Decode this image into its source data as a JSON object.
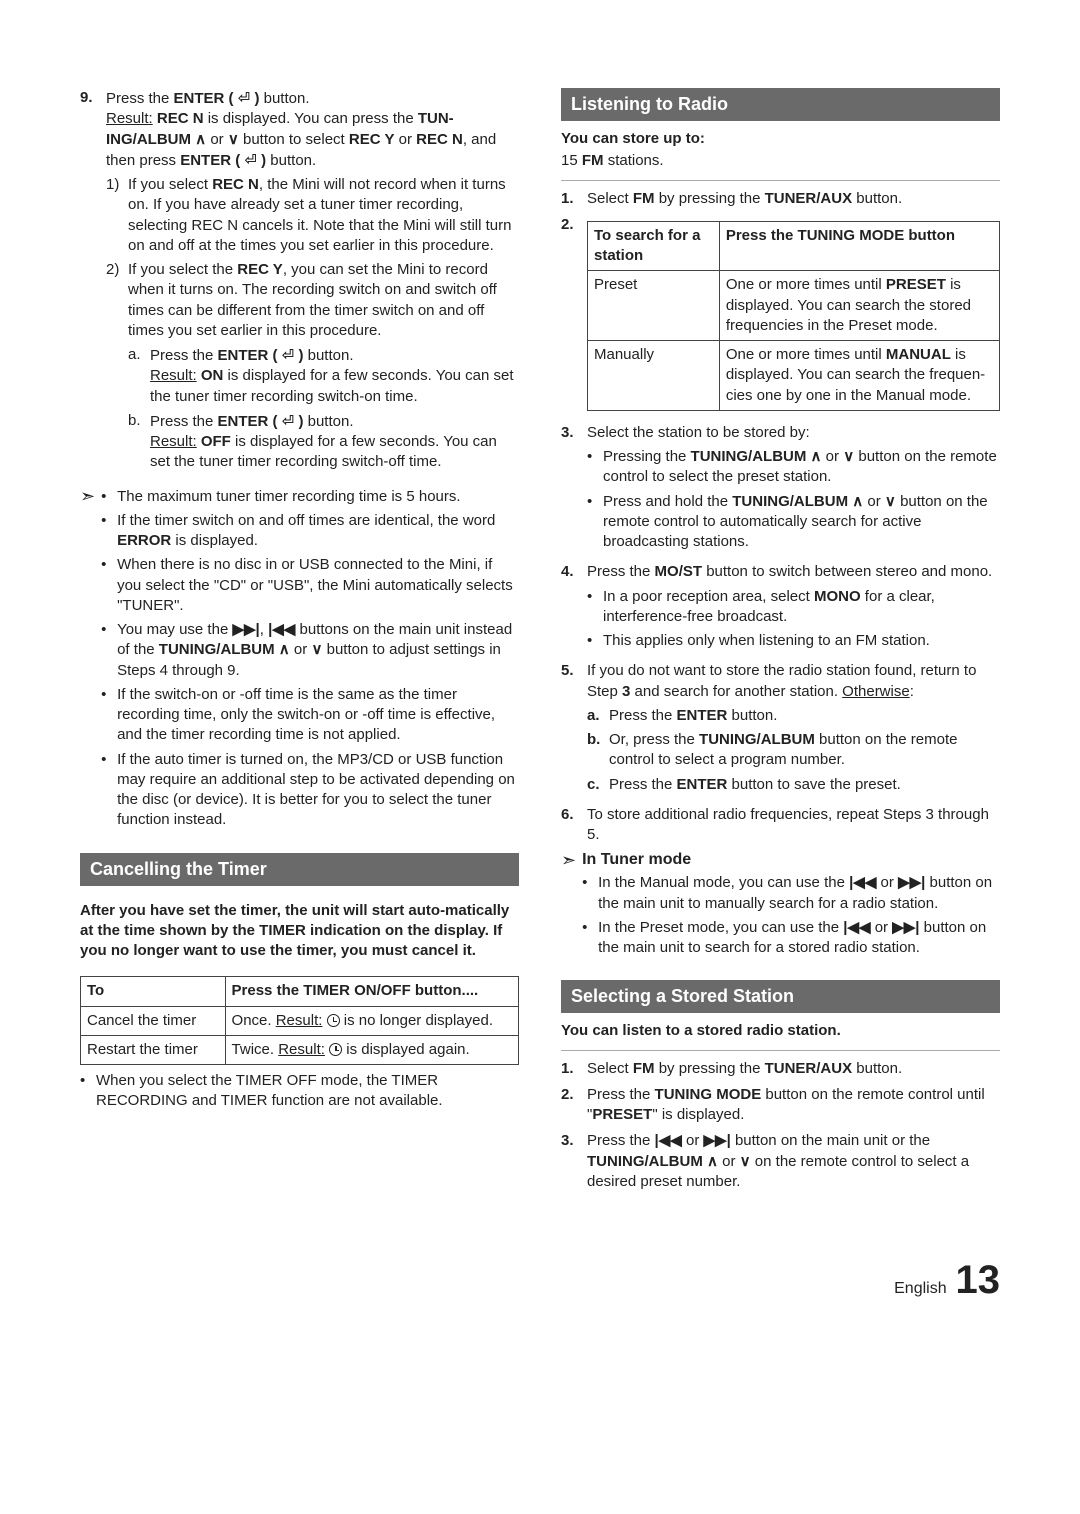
{
  "colors": {
    "header_bg": "#6a6a6a",
    "header_fg": "#ffffff",
    "text": "#222222",
    "rule": "#aaaaaa",
    "border": "#444444"
  },
  "typography": {
    "body_pt": 15,
    "header_pt": 18,
    "footer_pg_pt": 40,
    "line_height": 1.35
  },
  "left": {
    "step9": {
      "marker": "9.",
      "line1_a": "Press the ",
      "line1_b": "ENTER ( ",
      "enter_icon": "⏎",
      "line1_c": " )",
      "line1_d": " button.",
      "result_label": "Result:",
      "result1_a": " REC N",
      "result1_b": " is displayed. You can press the ",
      "tun_album": "TUN-ING/ALBUM ",
      "up": "∧",
      "or": " or ",
      "dn": "∨",
      "result1_c": " button to select ",
      "recy": "REC Y",
      "or2": " or ",
      "recn": "REC N",
      "result1_d": ", and then press ",
      "enter2": "ENTER ( ",
      "enter_icon2": "⏎",
      "enter2b": " )",
      "result1_e": " button.",
      "sub1": {
        "mk": "1)",
        "a": "If you select ",
        "b": "REC N",
        "c": ", the Mini will not record when it turns on. If you have already set a tuner timer recording, selecting REC N cancels it. Note that the Mini will still turn on and off at the times you set earlier in this procedure."
      },
      "sub2": {
        "mk": "2)",
        "a": "If you select the ",
        "b": "REC Y",
        "c": ", you can set the Mini to record when it turns on. The recording switch on and switch off times can be different from the timer switch on and off times you set earlier in this procedure."
      },
      "sub2a": {
        "mk": "a.",
        "a": "Press the ",
        "b": "ENTER ( ",
        "icon": "⏎",
        "b2": " )",
        "c": " button.",
        "res_label": "Result:",
        "res_a": " ON",
        "res_b": " is displayed for a few seconds. You can set the tuner timer recording switch-on time."
      },
      "sub2b": {
        "mk": "b.",
        "a": "Press the ",
        "b": "ENTER ( ",
        "icon": "⏎",
        "b2": " )",
        "c": " button.",
        "res_label": "Result:",
        "res_a": " OFF",
        "res_b": " is displayed for a few seconds. You can set the tuner timer recording switch-off time."
      }
    },
    "notes": [
      "The maximum tuner timer recording time is 5 hours.",
      "If the timer switch on and off times are identical, the word <b>ERROR</b> is displayed.",
      "When there is no disc in or USB connected to the Mini, if you select the \"CD\" or \"USB\", the Mini automatically selects \"TUNER\".",
      "You may use the <b>▶▶|</b>, <b>|◀◀</b> buttons on the main unit instead of the <b>TUNING/ALBUM ∧</b> or <b>∨</b> button to adjust settings in Steps 4 through 9.",
      "If the switch-on or -off time is the same as the timer recording  time, only the switch-on or -off time is effective, and the timer recording time is not applied.",
      "If the auto timer is turned on, the MP3/CD or USB function may require an additional step to be activated depending on the disc (or device). It is better for you to select the tuner function instead."
    ],
    "cancel_hdr": "Cancelling the Timer",
    "cancel_intro": "After you have set the timer, the unit will start auto-matically at the time shown by the TIMER indication on the display. If you no longer want to use the timer, you must cancel it.",
    "cancel_table": {
      "h1": "To",
      "h2": "Press the TIMER ON/OFF button....",
      "r1c1": "Cancel the timer",
      "r1c2_a": "Once. ",
      "r1c2_res": "Result:",
      "r1c2_b": " is no longer displayed.",
      "r2c1": "Restart the timer",
      "r2c2_a": "Twice. ",
      "r2c2_res": "Result:",
      "r2c2_b": " is displayed again."
    },
    "cancel_note": "When you select the TIMER OFF mode, the TIMER RECORDING and TIMER function are not available."
  },
  "right": {
    "listen_hdr": "Listening to Radio",
    "store_label": "You can store up to:",
    "store_val_a": "15 ",
    "store_val_b": "FM",
    "store_val_c": " stations.",
    "s1": {
      "mk": "1.",
      "a": "Select ",
      "b": "FM",
      "c": " by pressing the ",
      "d": "TUNER/AUX",
      "e": " button."
    },
    "s2": {
      "mk": "2."
    },
    "mode_table": {
      "h1": "To search for a station",
      "h2": "Press the TUNING MODE button",
      "r1c1": "Preset",
      "r1c2_a": "One or more times until ",
      "r1c2_b": "PRESET",
      "r1c2_c": " is displayed. You can search the stored frequencies in the Preset mode.",
      "r2c1": "Manually",
      "r2c2_a": "One or more times until ",
      "r2c2_b": "MANUAL",
      "r2c2_c": " is displayed. You can search the frequen-cies one by one in the Manual mode."
    },
    "s3": {
      "mk": "3.",
      "txt": "Select the station to be stored by:",
      "b1_a": "Pressing the ",
      "b1_b": "TUNING/ALBUM ∧",
      "b1_c": " or ",
      "b1_d": "∨",
      "b1_e": " button on the remote control to select the preset station.",
      "b2_a": "Press and hold the ",
      "b2_b": "TUNING/ALBUM ∧",
      "b2_c": " or ",
      "b2_d": "∨",
      "b2_e": " button on the remote control to automatically search for active broadcasting stations."
    },
    "s4": {
      "mk": "4.",
      "a": "Press the ",
      "b": "MO/ST",
      "c": " button to switch between stereo and mono.",
      "b1_a": "In a poor reception area, select ",
      "b1_b": "MONO",
      "b1_c": " for a clear, interference-free broadcast.",
      "b2": "This applies only when listening to an FM station."
    },
    "s5": {
      "mk": "5.",
      "a": "If you do not want to store the radio station found, return to Step ",
      "b": "3",
      "c": " and search for another station. ",
      "other": "Otherwise",
      "a_mk": "a.",
      "a_txt_a": "Press the ",
      "a_txt_b": "ENTER",
      "a_txt_c": " button.",
      "b_mk": "b.",
      "b_txt_a": "Or, press the ",
      "b_txt_b": "TUNING/ALBUM",
      "b_txt_c": " button on the remote control to select a program number.",
      "c_mk": "c.",
      "c_txt_a": "Press the ",
      "c_txt_b": "ENTER",
      "c_txt_c": " button to save the preset."
    },
    "s6": {
      "mk": "6.",
      "txt": "To store additional radio frequencies, repeat Steps 3 through 5."
    },
    "tuner_note_hdr": "In Tuner mode",
    "tuner_note_1": "In the Manual mode, you can use the <b>|◀◀</b> or <b>▶▶|</b> button on the main unit to manually search for a radio station.",
    "tuner_note_2": "In the Preset mode, you can use the <b>|◀◀</b> or <b>▶▶|</b> button on the main unit to search for a stored radio station.",
    "sel_hdr": "Selecting a Stored Station",
    "sel_intro": "You can listen to a stored radio station.",
    "ss1": {
      "mk": "1.",
      "a": "Select ",
      "b": "FM",
      "c": " by pressing the ",
      "d": "TUNER/AUX",
      "e": " button."
    },
    "ss2": {
      "mk": "2.",
      "a": "Press the ",
      "b": "TUNING MODE",
      "c": " button on the remote control until \"",
      "d": "PRESET",
      "e": "\" is displayed."
    },
    "ss3": {
      "mk": "3.",
      "a": "Press the ",
      "b": "|◀◀",
      "c": " or ",
      "d": "▶▶|",
      "e": " button on the main unit or the ",
      "f": "TUNING/ALBUM ∧",
      "g": " or ",
      "h": "∨",
      "i": " on the remote control to select a desired preset number."
    }
  },
  "footer": {
    "lang": "English",
    "page": "13"
  }
}
